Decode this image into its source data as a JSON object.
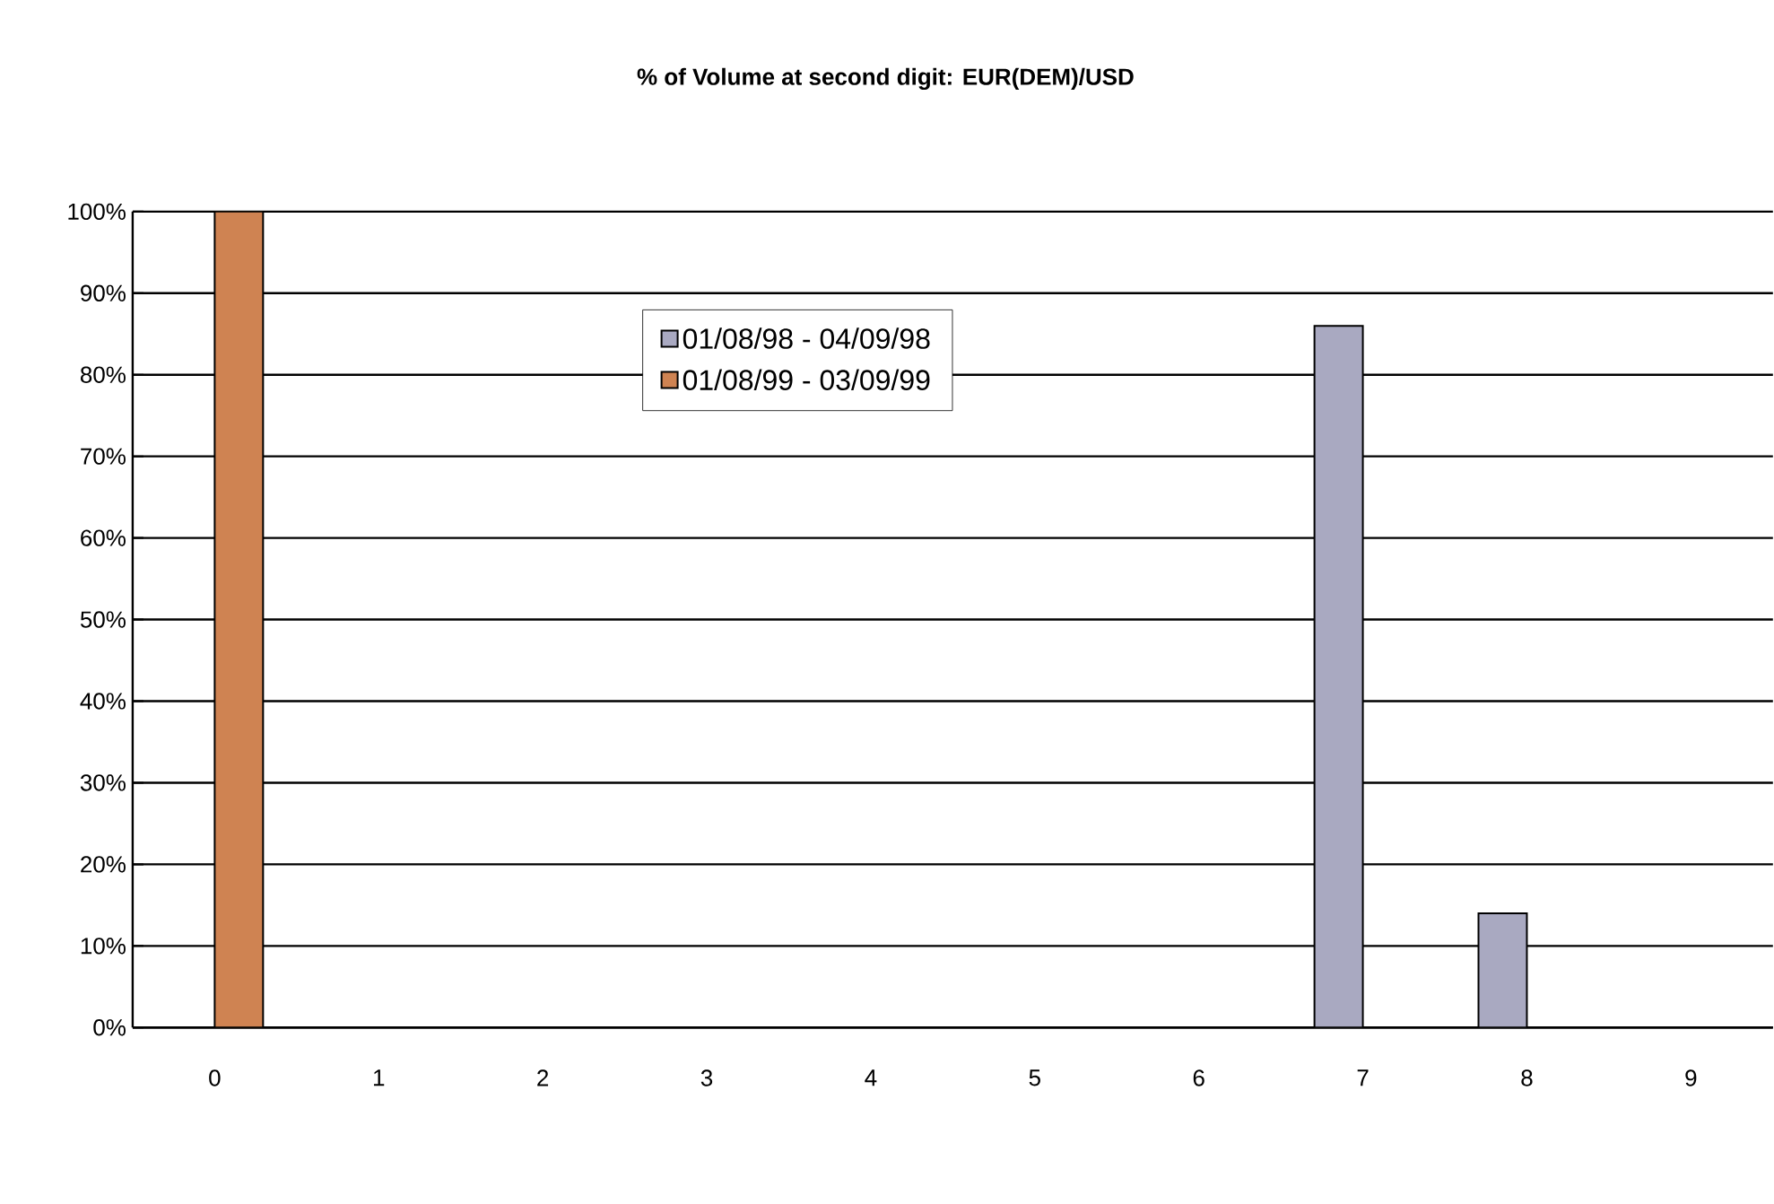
{
  "chart_data": {
    "type": "bar",
    "title": "% of Volume at second digit: EUR(DEM)/USD",
    "categories": [
      "0",
      "1",
      "2",
      "3",
      "4",
      "5",
      "6",
      "7",
      "8",
      "9"
    ],
    "series": [
      {
        "name": "01/08/98 - 04/09/98",
        "color": "#a9a9c1",
        "values": [
          0,
          0,
          0,
          0,
          0,
          0,
          0,
          86,
          14,
          0
        ]
      },
      {
        "name": "01/08/99 - 03/09/99",
        "color": "#cf8352",
        "values": [
          100,
          0,
          0,
          0,
          0,
          0,
          0,
          0,
          0,
          0
        ]
      }
    ],
    "ylim": [
      0,
      100
    ],
    "yticks": [
      {
        "value": 0,
        "label": "0%"
      },
      {
        "value": 10,
        "label": "10%"
      },
      {
        "value": 20,
        "label": "20%"
      },
      {
        "value": 30,
        "label": "30%"
      },
      {
        "value": 40,
        "label": "40%"
      },
      {
        "value": 50,
        "label": "50%"
      },
      {
        "value": 60,
        "label": "60%"
      },
      {
        "value": 70,
        "label": "70%"
      },
      {
        "value": 80,
        "label": "80%"
      },
      {
        "value": 90,
        "label": "90%"
      },
      {
        "value": 100,
        "label": "100%"
      }
    ],
    "grid": "y",
    "legend": "top"
  }
}
